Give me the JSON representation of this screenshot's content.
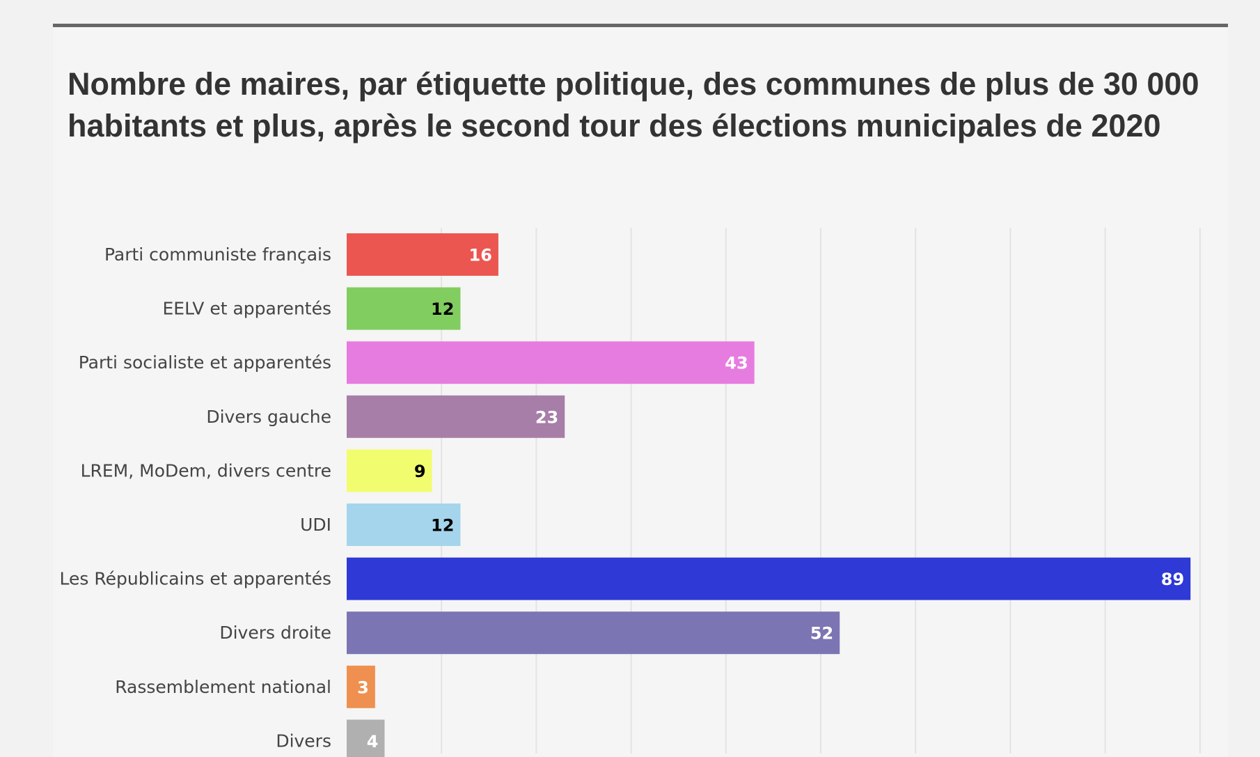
{
  "chart_data": {
    "type": "bar",
    "orientation": "horizontal",
    "title": "Nombre de maires, par étiquette politique, des communes de plus de 30 000 habitants et plus, après le second tour des élections municipales de 2020",
    "categories": [
      "Parti communiste français",
      "EELV et apparentés",
      "Parti socialiste et apparentés",
      "Divers gauche",
      "LREM, MoDem, divers centre",
      "UDI",
      "Les Républicains et apparentés",
      "Divers droite",
      "Rassemblement national",
      "Divers"
    ],
    "values": [
      16,
      12,
      43,
      23,
      9,
      12,
      89,
      52,
      3,
      4
    ],
    "colors": [
      "#ec5650",
      "#82cd60",
      "#e77ce0",
      "#a77ea8",
      "#f1fd6e",
      "#a4d5ec",
      "#2e39d6",
      "#7b75b3",
      "#ef9050",
      "#b0b0b0"
    ],
    "label_colors": [
      "#ffffff",
      "#000000",
      "#ffffff",
      "#ffffff",
      "#000000",
      "#000000",
      "#ffffff",
      "#ffffff",
      "#ffffff",
      "#ffffff"
    ],
    "xlim": [
      0,
      90
    ],
    "grid": true,
    "gridline_step": 10
  }
}
